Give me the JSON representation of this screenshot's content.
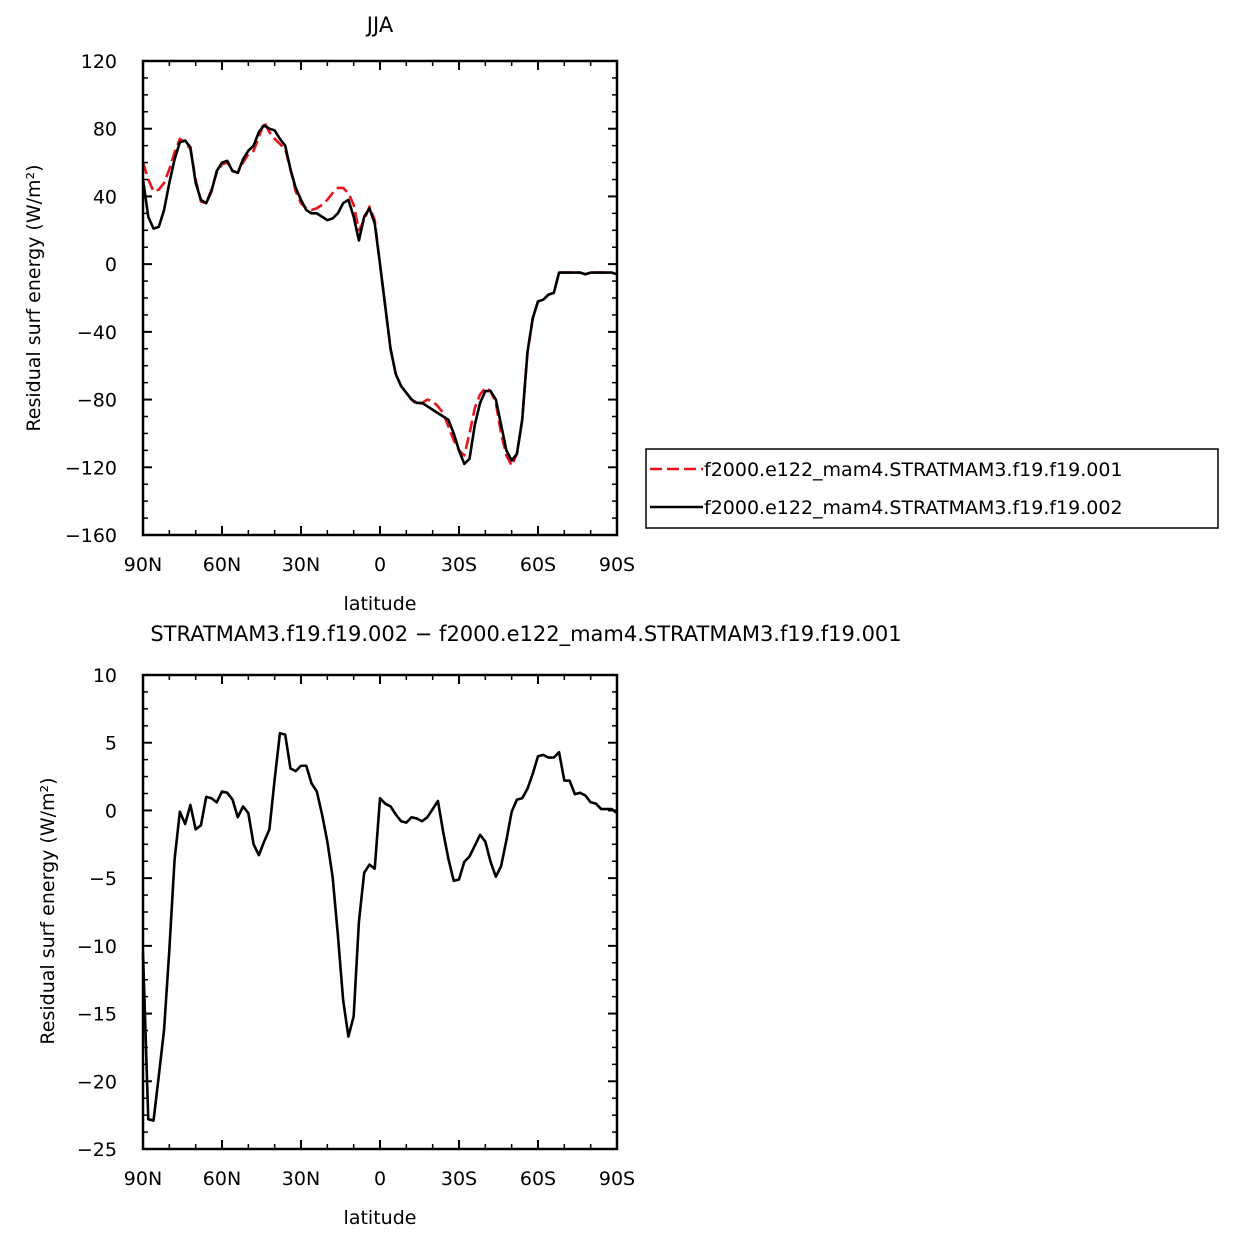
{
  "chart_data": [
    {
      "type": "line",
      "title": "JJA",
      "xlabel": "latitude",
      "ylabel": "Residual surf energy (W/m²)",
      "xlim": [
        90,
        -90
      ],
      "ylim": [
        -160,
        120
      ],
      "xticks": [
        90,
        60,
        30,
        0,
        -30,
        -60,
        -90
      ],
      "xtick_labels": [
        "90N",
        "60N",
        "30N",
        "0",
        "30S",
        "60S",
        "90S"
      ],
      "yticks": [
        120,
        80,
        40,
        0,
        -40,
        -80,
        -120,
        -160
      ],
      "ytick_labels": [
        "120",
        "80",
        "40",
        "0",
        "−40",
        "−80",
        "−120",
        "−160"
      ],
      "grid": false,
      "legend_position": "right",
      "series": [
        {
          "name": "f2000.e122_mam4.STRATMAM3.f19.f19.001",
          "color": "#e8141c",
          "dash": "dashed",
          "x": [
            90,
            88,
            86,
            84,
            82,
            80,
            78,
            76,
            74,
            72,
            70,
            68,
            66,
            64,
            62,
            60,
            58,
            56,
            54,
            52,
            50,
            48,
            46,
            44,
            42,
            40,
            38,
            36,
            34,
            32,
            30,
            28,
            26,
            24,
            22,
            20,
            18,
            16,
            14,
            12,
            10,
            8,
            6,
            4,
            2,
            0,
            -2,
            -4,
            -6,
            -8,
            -10,
            -12,
            -14,
            -16,
            -18,
            -20,
            -22,
            -24,
            -26,
            -28,
            -30,
            -32,
            -34,
            -36,
            -38,
            -40,
            -42,
            -44,
            -46,
            -48,
            -50,
            -52,
            -54,
            -56,
            -58,
            -60,
            -62,
            -64,
            -66,
            -68,
            -70,
            -72,
            -74,
            -76,
            -78,
            -80,
            -82,
            -84,
            -86,
            -88,
            -90
          ],
          "y": [
            60,
            50,
            43,
            44,
            48,
            56,
            66,
            74,
            72,
            68,
            50,
            37,
            36,
            44,
            54,
            59,
            60,
            55,
            54,
            60,
            65,
            67,
            75,
            84,
            78,
            74,
            71,
            68,
            56,
            43,
            36,
            33,
            32,
            33,
            35,
            38,
            42,
            45,
            45,
            42,
            35,
            20,
            26,
            34,
            26,
            0,
            -25,
            -50,
            -65,
            -72,
            -76,
            -80,
            -83,
            -82,
            -80,
            -81,
            -84,
            -88,
            -96,
            -104,
            -110,
            -113,
            -100,
            -85,
            -77,
            -73,
            -75,
            -82,
            -100,
            -113,
            -119,
            -112,
            -92,
            -52,
            -32,
            -22,
            -21,
            -18,
            -17,
            -5,
            -5,
            -5,
            -5,
            -5,
            -6,
            -5,
            -5,
            -5,
            -5,
            -5,
            -6
          ]
        },
        {
          "name": "f2000.e122_mam4.STRATMAM3.f19.f19.002",
          "color": "#000000",
          "dash": "solid",
          "x": [
            90,
            88,
            86,
            84,
            82,
            80,
            78,
            76,
            74,
            72,
            70,
            68,
            66,
            64,
            62,
            60,
            58,
            56,
            54,
            52,
            50,
            48,
            46,
            44,
            42,
            40,
            38,
            36,
            34,
            32,
            30,
            28,
            26,
            24,
            22,
            20,
            18,
            16,
            14,
            12,
            10,
            8,
            6,
            4,
            2,
            0,
            -2,
            -4,
            -6,
            -8,
            -10,
            -12,
            -14,
            -16,
            -18,
            -20,
            -22,
            -24,
            -26,
            -28,
            -30,
            -32,
            -34,
            -36,
            -38,
            -40,
            -42,
            -44,
            -46,
            -48,
            -50,
            -52,
            -54,
            -56,
            -58,
            -60,
            -62,
            -64,
            -66,
            -68,
            -70,
            -72,
            -74,
            -76,
            -78,
            -80,
            -82,
            -84,
            -86,
            -88,
            -90
          ],
          "y": [
            50,
            28,
            21,
            22,
            32,
            48,
            62,
            72,
            73,
            69,
            48,
            38,
            36,
            43,
            55,
            60,
            61,
            55,
            54,
            62,
            67,
            70,
            78,
            82,
            80,
            79,
            74,
            70,
            56,
            45,
            38,
            32,
            30,
            30,
            28,
            26,
            27,
            30,
            36,
            38,
            28,
            14,
            28,
            33,
            24,
            0,
            -25,
            -50,
            -65,
            -72,
            -76,
            -80,
            -82,
            -82,
            -84,
            -86,
            -88,
            -90,
            -92,
            -100,
            -110,
            -118,
            -115,
            -95,
            -82,
            -75,
            -75,
            -80,
            -95,
            -110,
            -116,
            -112,
            -92,
            -52,
            -32,
            -22,
            -21,
            -18,
            -17,
            -5,
            -5,
            -5,
            -5,
            -5,
            -6,
            -5,
            -5,
            -5,
            -5,
            -5,
            -6
          ]
        }
      ]
    },
    {
      "type": "line",
      "title": "STRATMAM3.f19.f19.002 − f2000.e122_mam4.STRATMAM3.f19.f19.001",
      "xlabel": "latitude",
      "ylabel": "Residual surf energy (W/m²)",
      "xlim": [
        90,
        -90
      ],
      "ylim": [
        -25,
        10
      ],
      "xticks": [
        90,
        60,
        30,
        0,
        -30,
        -60,
        -90
      ],
      "xtick_labels": [
        "90N",
        "60N",
        "30N",
        "0",
        "30S",
        "60S",
        "90S"
      ],
      "yticks": [
        10,
        5,
        0,
        -5,
        -10,
        -15,
        -20,
        -25
      ],
      "ytick_labels": [
        "10",
        "5",
        "0",
        "−5",
        "−10",
        "−15",
        "−20",
        "−25"
      ],
      "grid": false,
      "series": [
        {
          "color": "#000000",
          "dash": "solid",
          "x": [
            90,
            88,
            86,
            84,
            82,
            80,
            78,
            76,
            74,
            72,
            70,
            68,
            66,
            64,
            62,
            60,
            58,
            56,
            54,
            52,
            50,
            48,
            46,
            44,
            42,
            40,
            38,
            36,
            34,
            32,
            30,
            28,
            26,
            24,
            22,
            20,
            18,
            16,
            14,
            12,
            10,
            8,
            6,
            4,
            2,
            0,
            -2,
            -4,
            -6,
            -8,
            -10,
            -12,
            -14,
            -16,
            -18,
            -20,
            -22,
            -24,
            -26,
            -28,
            -30,
            -32,
            -34,
            -36,
            -38,
            -40,
            -42,
            -44,
            -46,
            -48,
            -50,
            -52,
            -54,
            -56,
            -58,
            -60,
            -62,
            -64,
            -66,
            -68,
            -70,
            -72,
            -74,
            -76,
            -78,
            -80,
            -82,
            -84,
            -86,
            -88,
            -90
          ],
          "y": [
            -10.5,
            -22.8,
            -22.9,
            -19.6,
            -16.2,
            -10.3,
            -3.6,
            -0.1,
            -1.0,
            0.4,
            -1.4,
            -1.1,
            1.0,
            0.9,
            0.6,
            1.4,
            1.3,
            0.8,
            -0.5,
            0.3,
            -0.2,
            -2.5,
            -3.3,
            -2.3,
            -1.4,
            2.3,
            5.7,
            5.6,
            3.1,
            2.9,
            3.3,
            3.3,
            2.0,
            1.4,
            -0.3,
            -2.3,
            -4.9,
            -9.2,
            -14.0,
            -16.7,
            -15.2,
            -8.2,
            -4.6,
            -4.0,
            -4.3,
            0.9,
            0.5,
            0.3,
            -0.3,
            -0.8,
            -0.9,
            -0.5,
            -0.6,
            -0.8,
            -0.5,
            0.1,
            0.7,
            -1.6,
            -3.6,
            -5.2,
            -5.1,
            -3.8,
            -3.4,
            -2.6,
            -1.8,
            -2.3,
            -3.8,
            -4.9,
            -4.1,
            -2.2,
            -0.1,
            0.8,
            0.9,
            1.6,
            2.7,
            4.0,
            4.1,
            3.9,
            3.9,
            4.3,
            2.2,
            2.2,
            1.2,
            1.3,
            1.1,
            0.6,
            0.5,
            0.1,
            0.1,
            0.1,
            -0.2
          ]
        }
      ]
    }
  ]
}
